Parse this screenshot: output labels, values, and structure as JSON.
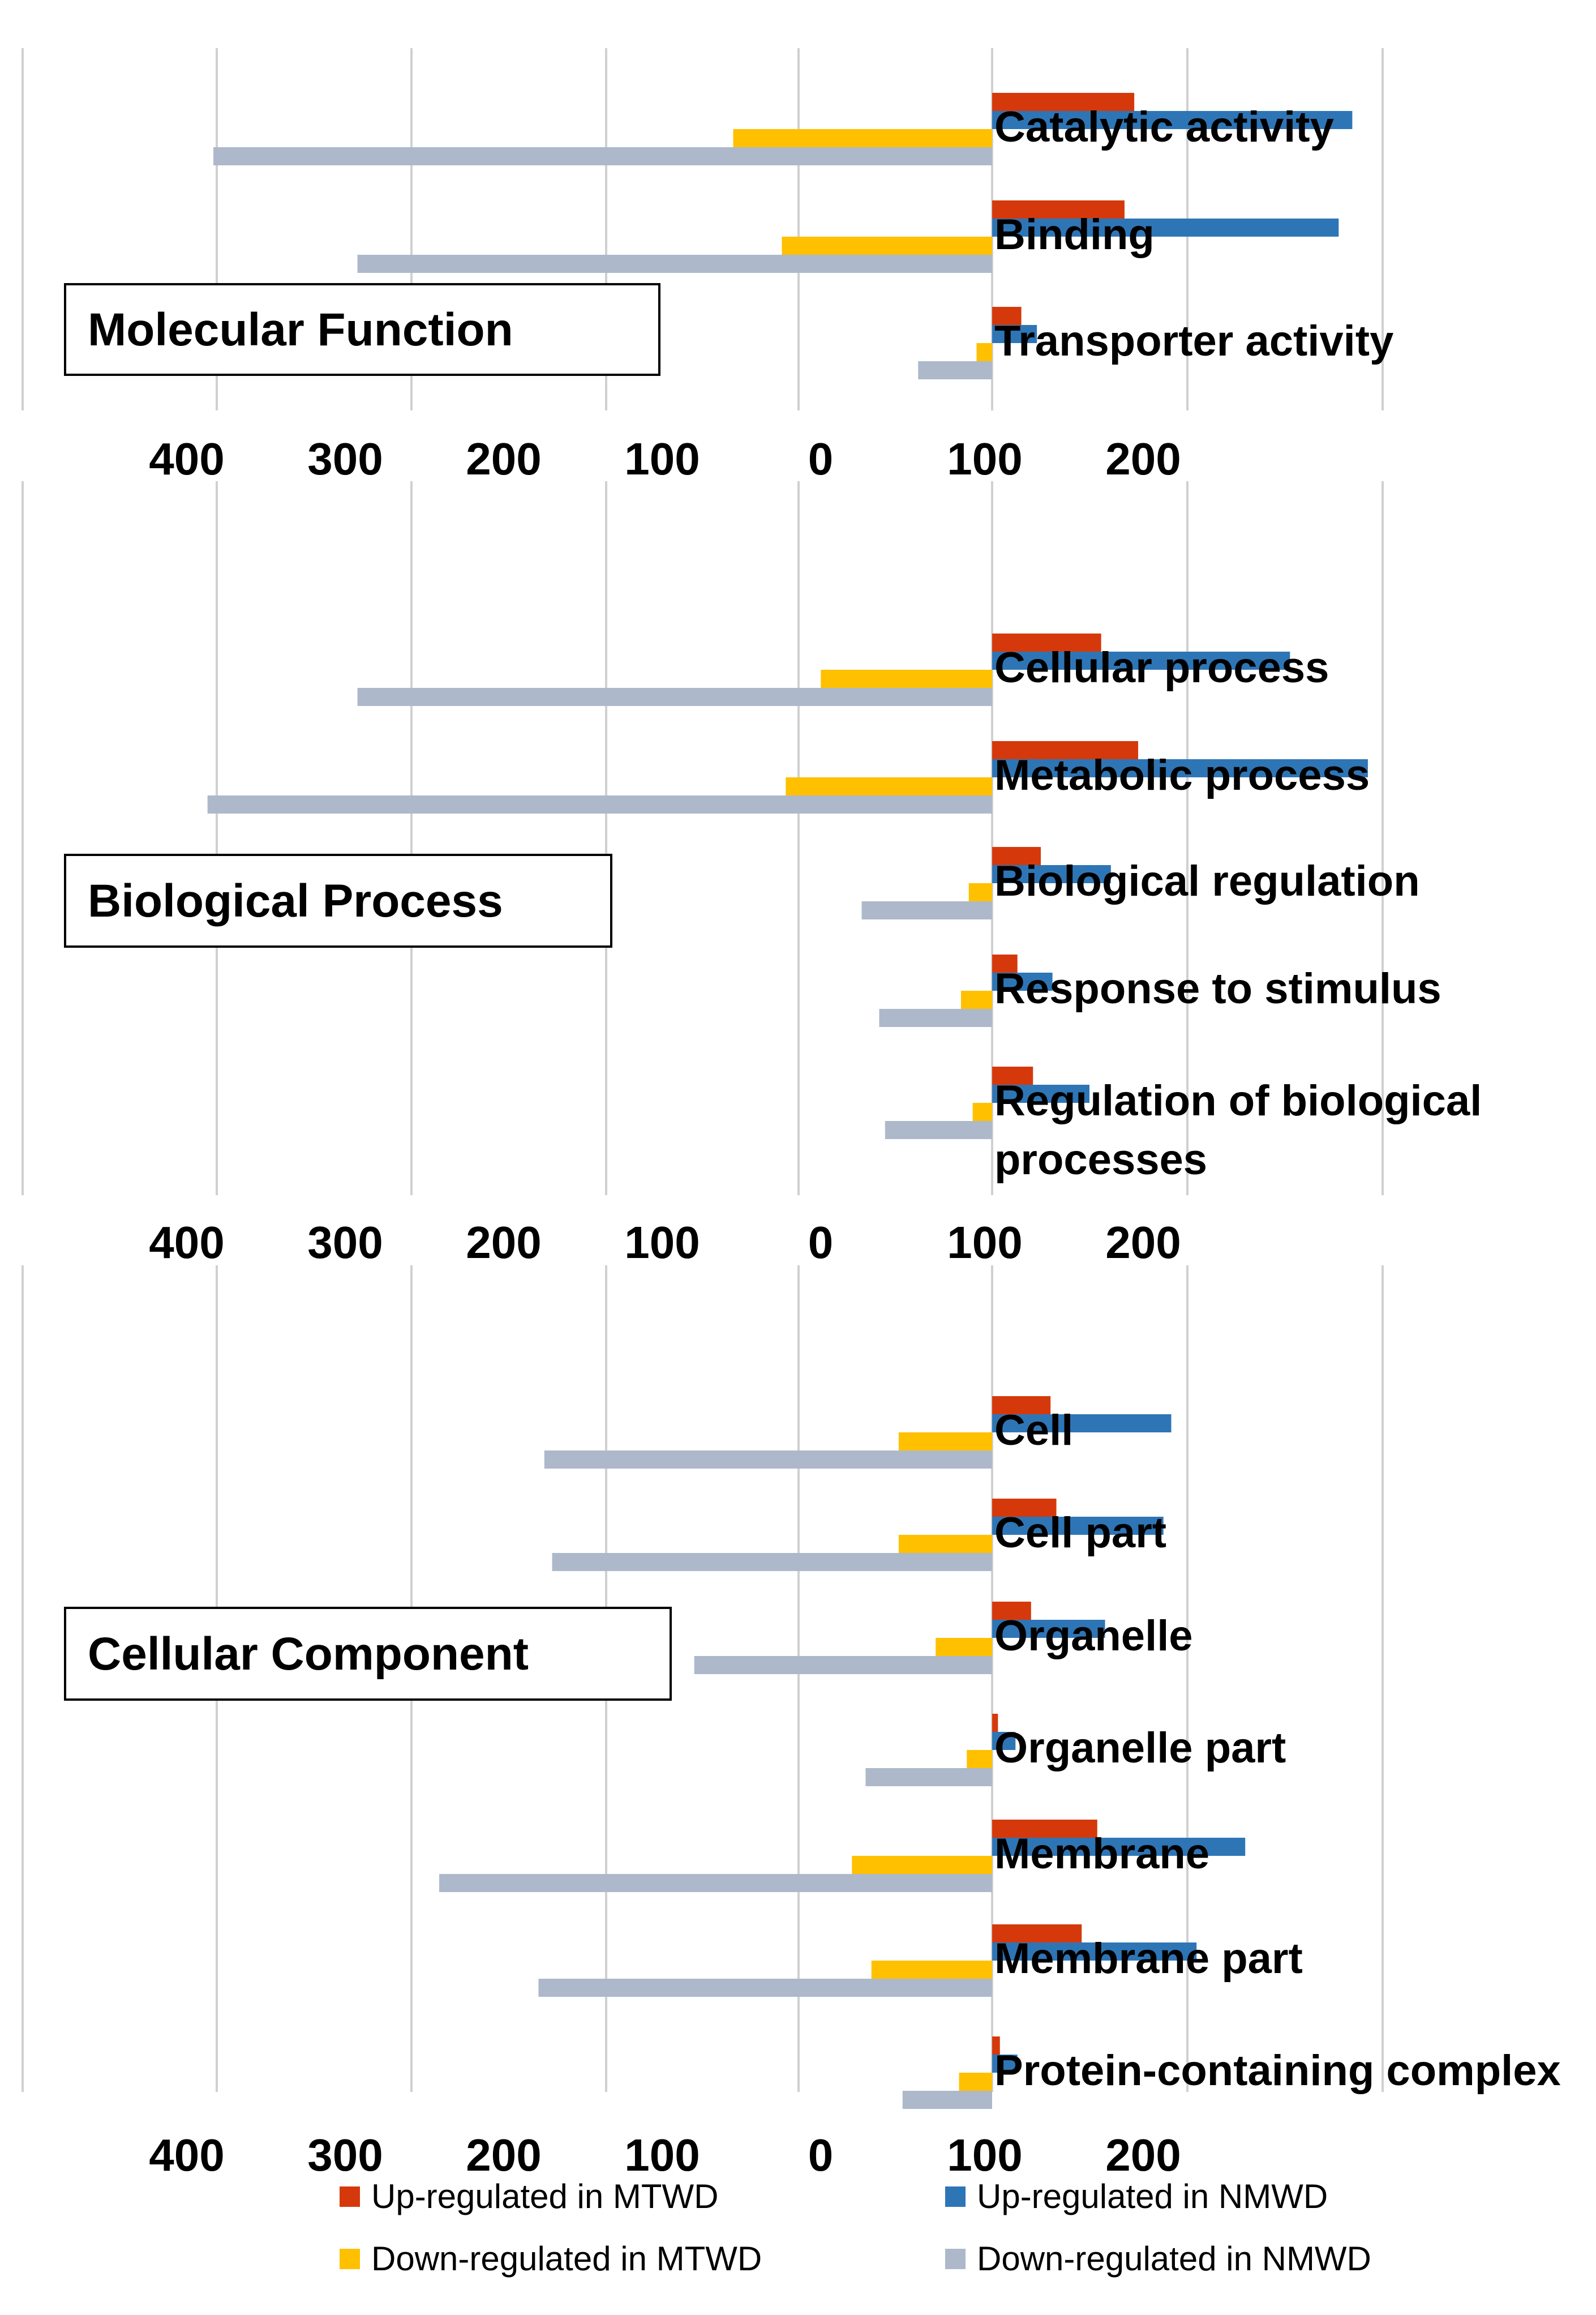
{
  "colors": {
    "up_mtwd": "#D5390B",
    "up_nmwd": "#2E75B6",
    "down_mtwd": "#FFC000",
    "down_nmwd": "#ADB9CA"
  },
  "legend": [
    {
      "key": "up_mtwd",
      "label": "Up-regulated in MTWD"
    },
    {
      "key": "up_nmwd",
      "label": "Up-regulated in NMWD"
    },
    {
      "key": "down_mtwd",
      "label": "Down-regulated in MTWD"
    },
    {
      "key": "down_nmwd",
      "label": "Down-regulated in NMWD"
    }
  ],
  "chart_data": [
    {
      "type": "bar",
      "orientation": "horizontal",
      "title": "Molecular Function",
      "tick_labels": [
        "400",
        "300",
        "200",
        "100",
        "0",
        "100",
        "200"
      ],
      "categories": [
        "Catalytic activity",
        "Binding",
        "Transporter activity"
      ],
      "series": [
        {
          "name": "Up-regulated in MTWD",
          "values": [
            73,
            68,
            15
          ]
        },
        {
          "name": "Up-regulated in NMWD",
          "values": [
            185,
            178,
            23
          ]
        },
        {
          "name": "Down-regulated in MTWD",
          "values": [
            -133,
            -108,
            -8
          ]
        },
        {
          "name": "Down-regulated in NMWD",
          "values": [
            -400,
            -326,
            -38
          ]
        }
      ]
    },
    {
      "type": "bar",
      "orientation": "horizontal",
      "title": "Biological Process",
      "tick_labels": [
        "400",
        "300",
        "200",
        "100",
        "0",
        "100",
        "200"
      ],
      "categories": [
        "Cellular process",
        "Metabolic process",
        "Biological regulation",
        "Response to stimulus",
        "Regulation of biological processes"
      ],
      "series": [
        {
          "name": "Up-regulated in MTWD",
          "values": [
            56,
            75,
            25,
            13,
            21
          ]
        },
        {
          "name": "Up-regulated in NMWD",
          "values": [
            153,
            193,
            61,
            31,
            50
          ]
        },
        {
          "name": "Down-regulated in MTWD",
          "values": [
            -88,
            -106,
            -12,
            -16,
            -10
          ]
        },
        {
          "name": "Down-regulated in NMWD",
          "values": [
            -326,
            -403,
            -67,
            -58,
            -55
          ]
        }
      ]
    },
    {
      "type": "bar",
      "orientation": "horizontal",
      "title": "Cellular Component",
      "tick_labels": [
        "400",
        "300",
        "200",
        "100",
        "0",
        "100",
        "200"
      ],
      "categories": [
        "Cell",
        "Cell part",
        "Organelle",
        "Organelle part",
        "Membrane",
        "Membrane part",
        "Protein-containing complex"
      ],
      "series": [
        {
          "name": "Up-regulated in MTWD",
          "values": [
            30,
            33,
            20,
            3,
            54,
            46,
            4
          ]
        },
        {
          "name": "Up-regulated in NMWD",
          "values": [
            92,
            88,
            58,
            12,
            130,
            105,
            13
          ]
        },
        {
          "name": "Down-regulated in MTWD",
          "values": [
            -48,
            -48,
            -29,
            -13,
            -72,
            -62,
            -17
          ]
        },
        {
          "name": "Down-regulated in NMWD",
          "values": [
            -230,
            -226,
            -153,
            -65,
            -284,
            -233,
            -46
          ]
        }
      ]
    }
  ]
}
